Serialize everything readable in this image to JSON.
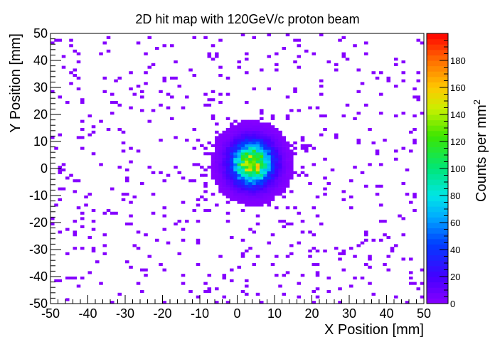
{
  "chart_data": {
    "type": "heatmap",
    "title": "2D hit map with 120GeV/c proton beam",
    "xlabel": "X Position [mm]",
    "ylabel": "Y Position [mm]",
    "zlabel": "Counts per mm",
    "zlabel_superscript": "2",
    "xlim": [
      -50,
      50
    ],
    "ylim": [
      -50,
      50
    ],
    "zlim": [
      0,
      200
    ],
    "x_ticks": [
      -50,
      -40,
      -30,
      -20,
      -10,
      0,
      10,
      20,
      30,
      40,
      50
    ],
    "y_ticks": [
      -50,
      -40,
      -30,
      -20,
      -10,
      0,
      10,
      20,
      30,
      40,
      50
    ],
    "z_ticks": [
      0,
      20,
      40,
      60,
      80,
      100,
      120,
      140,
      160,
      180
    ],
    "bin_size_mm": 1,
    "grid": false,
    "colormap": "ROOT rainbow (purple-blue-cyan-green-yellow-orange-red)",
    "beam_profile": {
      "center_x": 4,
      "center_y": 2,
      "sigma_x": 3.5,
      "sigma_y": 5,
      "peak_counts": 150
    },
    "scattered_hits": "sparse 1-count hits across the full 100x100 mm area, denser within ~25 mm of the beam spot"
  },
  "colors": {
    "frame": "#000000",
    "background": "#ffffff",
    "low_count": "#8800ff",
    "high_count": "#ff0000"
  }
}
